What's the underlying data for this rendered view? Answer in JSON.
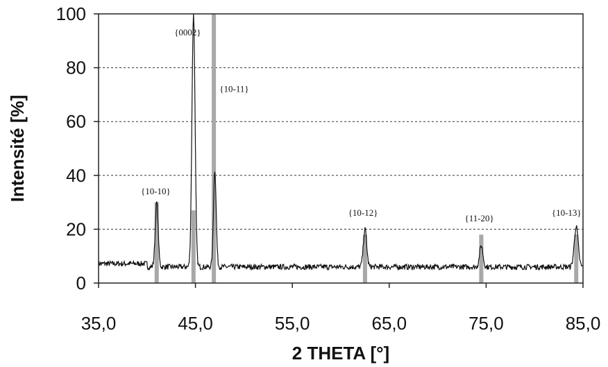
{
  "chart_data": {
    "type": "line",
    "title": "",
    "xlabel": "2 THETA [°]",
    "ylabel": "Intensité [%]",
    "xlim": [
      35,
      85
    ],
    "ylim": [
      0,
      100
    ],
    "x_ticks": [
      {
        "value": 35,
        "label": "35,0"
      },
      {
        "value": 45,
        "label": "45,0"
      },
      {
        "value": 55,
        "label": "55,0"
      },
      {
        "value": 65,
        "label": "65,0"
      },
      {
        "value": 75,
        "label": "75,0"
      },
      {
        "value": 85,
        "label": "85,0"
      }
    ],
    "y_ticks": [
      {
        "value": 0,
        "label": "0"
      },
      {
        "value": 20,
        "label": "20"
      },
      {
        "value": 40,
        "label": "40"
      },
      {
        "value": 60,
        "label": "60"
      },
      {
        "value": 80,
        "label": "80"
      },
      {
        "value": 100,
        "label": "100"
      }
    ],
    "grid": {
      "horizontal_dashed": [
        20,
        40,
        60,
        80
      ]
    },
    "line_color": "#111111",
    "reference_bar_color": "#a8a8a8",
    "baseline_intensity": 6,
    "series": [
      {
        "peaks": [
          {
            "x": 41.0,
            "y": 30,
            "width": 0.15
          },
          {
            "x": 44.8,
            "y": 100,
            "width": 0.16
          },
          {
            "x": 47.0,
            "y": 42,
            "width": 0.14
          },
          {
            "x": 62.5,
            "y": 20,
            "width": 0.17
          },
          {
            "x": 74.5,
            "y": 14,
            "width": 0.17
          },
          {
            "x": 84.3,
            "y": 21,
            "width": 0.2
          }
        ]
      }
    ],
    "reference_bars": [
      {
        "x": 41.0,
        "y": 30
      },
      {
        "x": 44.8,
        "y": 27
      },
      {
        "x": 46.9,
        "y": 100
      },
      {
        "x": 62.5,
        "y": 18
      },
      {
        "x": 74.5,
        "y": 18
      },
      {
        "x": 84.3,
        "y": 18
      }
    ],
    "annotations": [
      {
        "text": "{10-10}",
        "x": 40.9,
        "y": 33
      },
      {
        "text": "{0002}",
        "x": 44.2,
        "y": 92
      },
      {
        "text": "{10-11}",
        "x": 49.0,
        "y": 71
      },
      {
        "text": "{10-12}",
        "x": 62.3,
        "y": 25
      },
      {
        "text": "{11-20}",
        "x": 74.3,
        "y": 23
      },
      {
        "text": "{10-13}",
        "x": 83.3,
        "y": 25
      }
    ]
  }
}
